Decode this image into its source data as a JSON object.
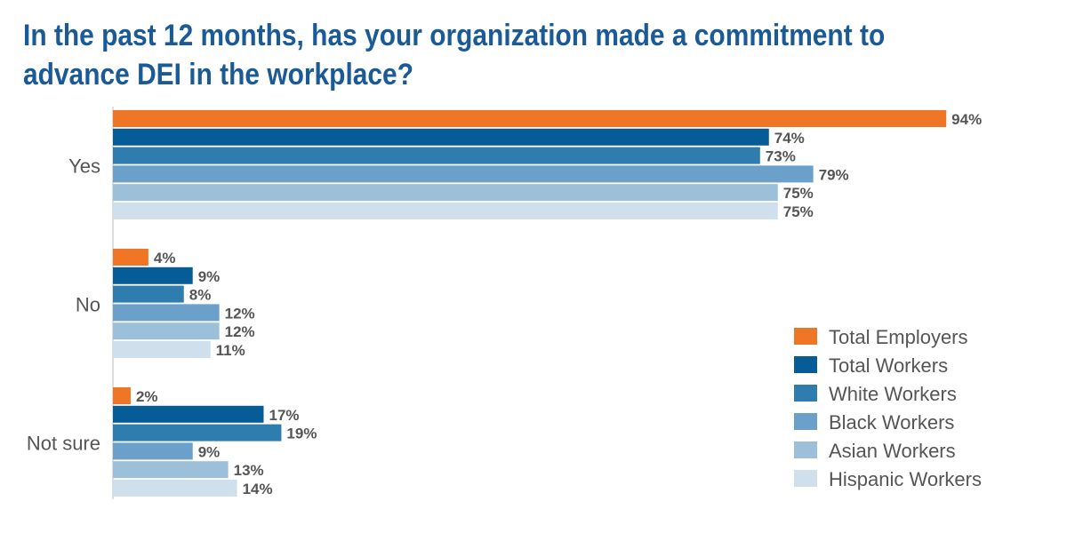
{
  "chart_data": {
    "type": "bar",
    "orientation": "horizontal",
    "title": "In the past 12 months, has your organization made a commitment to advance DEI in the workplace?",
    "categories": [
      "Yes",
      "No",
      "Not sure"
    ],
    "value_suffix": "%",
    "xlim": [
      0,
      100
    ],
    "grid": false,
    "legend_position": "right",
    "series": [
      {
        "name": "Total Employers",
        "color": "#ef7625",
        "values": [
          94,
          4,
          2
        ]
      },
      {
        "name": "Total Workers",
        "color": "#065c97",
        "values": [
          74,
          9,
          17
        ]
      },
      {
        "name": "White Workers",
        "color": "#2f7cae",
        "values": [
          73,
          8,
          19
        ]
      },
      {
        "name": "Black Workers",
        "color": "#6aa0c9",
        "values": [
          79,
          12,
          9
        ]
      },
      {
        "name": "Asian Workers",
        "color": "#9cc0da",
        "values": [
          75,
          12,
          13
        ]
      },
      {
        "name": "Hispanic Workers",
        "color": "#cfe0ec",
        "values": [
          75,
          11,
          14
        ]
      }
    ]
  }
}
